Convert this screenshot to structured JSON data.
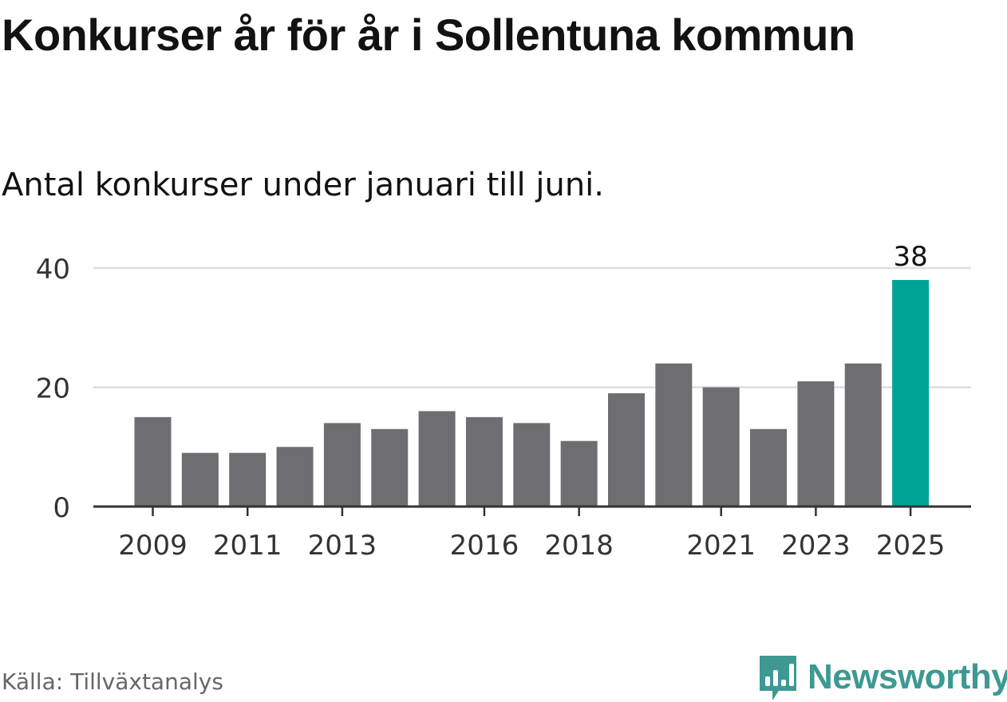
{
  "header": {
    "title": "Konkurser år för år i Sollentuna kommun",
    "subtitle": "Antal konkurser under januari till juni."
  },
  "footer": {
    "source": "Källa: Tillväxtanalys",
    "brand": "Newsworthy",
    "brand_icon": "bar-chart-speech-icon"
  },
  "colors": {
    "bar": "#6e6d72",
    "highlight": "#00a497",
    "brand": "#3d9992",
    "axis": "#333333",
    "grid": "#dddddd"
  },
  "chart_data": {
    "type": "bar",
    "categories": [
      "2009",
      "2010",
      "2011",
      "2012",
      "2013",
      "2014",
      "2015",
      "2016",
      "2017",
      "2018",
      "2019",
      "2020",
      "2021",
      "2022",
      "2023",
      "2024",
      "2025"
    ],
    "values": [
      15,
      9,
      9,
      10,
      14,
      13,
      16,
      15,
      14,
      11,
      19,
      24,
      20,
      13,
      21,
      24,
      38
    ],
    "tick_labels": [
      "2009",
      "2011",
      "2013",
      "2016",
      "2018",
      "2021",
      "2023",
      "2025"
    ],
    "yticks": [
      0,
      20,
      40
    ],
    "ylim": [
      0,
      40
    ],
    "highlight": "2025",
    "highlight_label": "38",
    "grid": true,
    "xlabel": "",
    "ylabel": ""
  }
}
